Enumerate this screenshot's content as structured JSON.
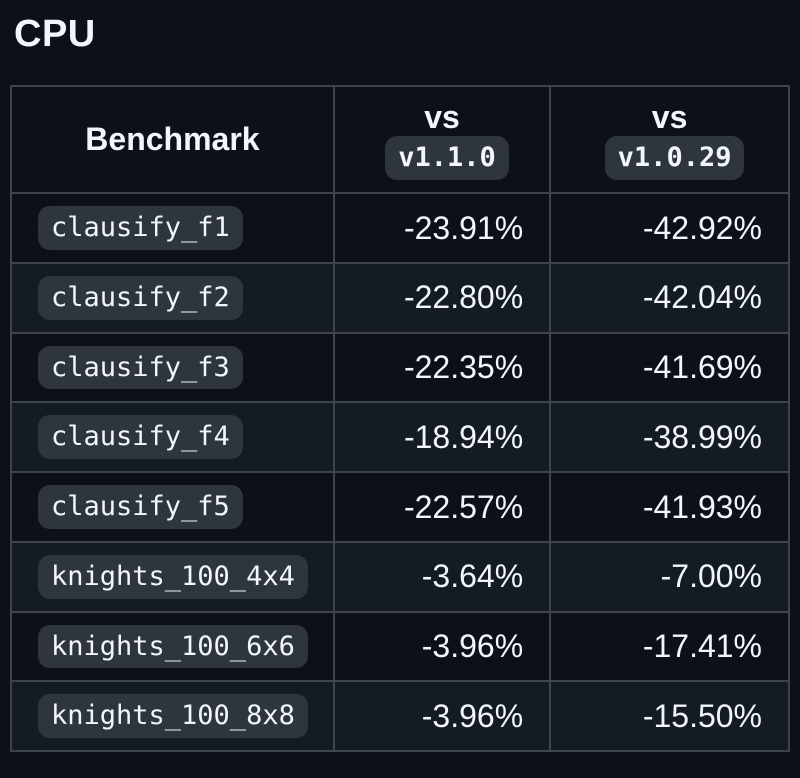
{
  "page": {
    "title": "CPU"
  },
  "colors": {
    "background": "#0d1117",
    "row_alt_background": "#151b23",
    "border": "#3d444d",
    "badge_background": "#2f353d",
    "text": "#f0f6fc"
  },
  "table": {
    "header": {
      "benchmark": "Benchmark",
      "col2": {
        "prefix": "vs",
        "version": "v1.1.0"
      },
      "col3": {
        "prefix": "vs",
        "version": "v1.0.29"
      }
    },
    "rows": [
      {
        "name": "clausify_f1",
        "vs110": "-23.91%",
        "vs1029": "-42.92%"
      },
      {
        "name": "clausify_f2",
        "vs110": "-22.80%",
        "vs1029": "-42.04%"
      },
      {
        "name": "clausify_f3",
        "vs110": "-22.35%",
        "vs1029": "-41.69%"
      },
      {
        "name": "clausify_f4",
        "vs110": "-18.94%",
        "vs1029": "-38.99%"
      },
      {
        "name": "clausify_f5",
        "vs110": "-22.57%",
        "vs1029": "-41.93%"
      },
      {
        "name": "knights_100_4x4",
        "vs110": "-3.64%",
        "vs1029": "-7.00%"
      },
      {
        "name": "knights_100_6x6",
        "vs110": "-3.96%",
        "vs1029": "-17.41%"
      },
      {
        "name": "knights_100_8x8",
        "vs110": "-3.96%",
        "vs1029": "-15.50%"
      }
    ]
  }
}
